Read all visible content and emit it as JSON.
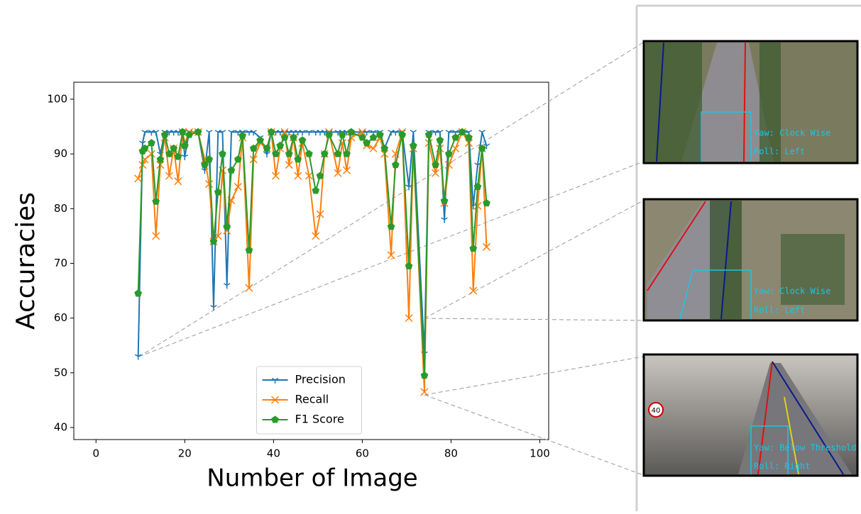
{
  "chart_data": {
    "type": "line",
    "xlabel": "Number of Image",
    "ylabel": "Accuracies",
    "x": [
      9.5,
      10.5,
      11,
      12.5,
      13.5,
      14.5,
      15.5,
      16.5,
      17.5,
      18.5,
      19.5,
      20,
      21,
      23,
      24.5,
      25.5,
      26.5,
      27.5,
      28.5,
      29.5,
      30.5,
      32,
      33,
      34.5,
      35.5,
      37,
      38.5,
      39.5,
      40.5,
      41.5,
      42.5,
      43.5,
      44.5,
      45.5,
      46.5,
      48,
      49.5,
      50.5,
      51.5,
      52.5,
      54.5,
      55.5,
      56.5,
      57.5,
      60,
      61,
      62.5,
      64,
      65,
      66.5,
      67.5,
      69,
      70.5,
      71.5,
      74,
      75,
      76.5,
      77.5,
      78.5,
      79.5,
      81,
      82.5,
      84,
      85,
      86,
      87,
      88
    ],
    "series": [
      {
        "name": "Precision",
        "color": "#1f77b4",
        "marker": "tri_down",
        "values": [
          53,
          92,
          94,
          94,
          94,
          90,
          94,
          94,
          94,
          94,
          94,
          89.5,
          94,
          94,
          87,
          94,
          62,
          94,
          94,
          66,
          94,
          94,
          94,
          94,
          94,
          93,
          90,
          94,
          94,
          94,
          94,
          94,
          94,
          94,
          94,
          94,
          94,
          94,
          94,
          94,
          94,
          94,
          94,
          94,
          94,
          94,
          94,
          94,
          91,
          94,
          94,
          94,
          84,
          94,
          53.5,
          94,
          94,
          94,
          78,
          94,
          94,
          94,
          94,
          80.5,
          88,
          94,
          91.5
        ]
      },
      {
        "name": "Recall",
        "color": "#ff7f0e",
        "marker": "x",
        "values": [
          85.5,
          88,
          89,
          90,
          75,
          88,
          93,
          86,
          91,
          85,
          94,
          92,
          94,
          94,
          89,
          84.5,
          74,
          75,
          87,
          76,
          81.5,
          84,
          93,
          65.5,
          89,
          92,
          91,
          94,
          86,
          91,
          94,
          88,
          93,
          86,
          92,
          86,
          75,
          79,
          90,
          94,
          86.5,
          92,
          87,
          93,
          94,
          91.5,
          91,
          93,
          90,
          71.5,
          90,
          94,
          60,
          91,
          46.5,
          92,
          86.5,
          91,
          81,
          88,
          91,
          94,
          92,
          65,
          80.5,
          91,
          73
        ]
      },
      {
        "name": "F1 Score",
        "color": "#2a9a2a",
        "marker": "pentagon",
        "values": [
          64.5,
          90.5,
          91,
          92,
          81.3,
          89,
          93.5,
          90,
          91,
          89.5,
          94,
          91.5,
          93.5,
          94,
          88,
          89,
          74,
          83,
          90,
          76.7,
          87,
          89,
          93.3,
          72.4,
          91,
          92.5,
          91,
          94,
          90,
          91.5,
          93,
          90,
          93,
          89,
          92.5,
          90,
          83.3,
          86,
          90,
          93.5,
          90,
          93.5,
          90,
          94,
          93,
          92,
          93,
          93.5,
          91,
          76.7,
          88,
          93.5,
          69.5,
          91.5,
          49.5,
          93.5,
          88,
          92.5,
          81.4,
          90,
          93,
          94,
          93,
          72.7,
          84,
          91,
          81
        ]
      }
    ],
    "xlim": [
      -5,
      102
    ],
    "ylim": [
      37.8,
      103.1
    ],
    "xticks": [
      0,
      20,
      40,
      60,
      80,
      100
    ],
    "yticks": [
      40,
      50,
      60,
      70,
      80,
      90,
      100
    ],
    "legend": "lower center"
  },
  "panels": [
    {
      "yaw": "Yaw: Clock Wise",
      "roll": "Roll: Left"
    },
    {
      "yaw": "Yaw: Clock Wise",
      "roll": "Roll: Left"
    },
    {
      "yaw": "Yaw: Below Threshold",
      "roll": "Roll: Right",
      "sign": "40"
    }
  ]
}
